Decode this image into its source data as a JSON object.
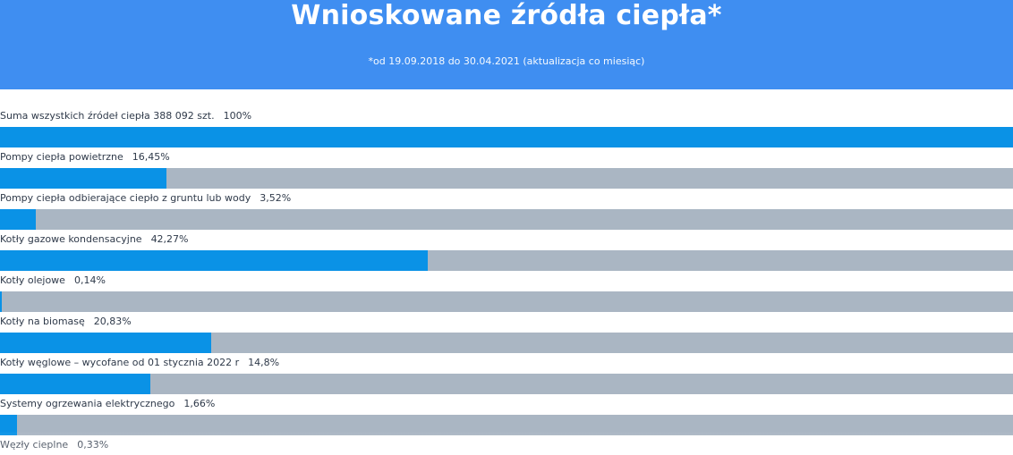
{
  "header": {
    "title": "Wnioskowane źródła ciepła*",
    "subtitle": "*od 19.09.2018 do 30.04.2021 (aktualizacja co miesiąc)"
  },
  "colors": {
    "header_bg": "#3f8ef1",
    "bar_fill": "#0a92e6",
    "bar_track": "#aab6c3",
    "label_text": "#2f3a4a"
  },
  "chart_data": {
    "type": "bar",
    "orientation": "horizontal",
    "unit": "%",
    "xlim": [
      0,
      100
    ],
    "grid": false,
    "rows": [
      {
        "label": "Suma wszystkich źródeł ciepła 388 092 szt.",
        "value_text": "100%",
        "value": 100
      },
      {
        "label": "Pompy ciepła powietrzne",
        "value_text": "16,45%",
        "value": 16.45
      },
      {
        "label": "Pompy ciepła odbierające ciepło z gruntu lub wody",
        "value_text": "3,52%",
        "value": 3.52
      },
      {
        "label": "Kotły gazowe kondensacyjne",
        "value_text": "42,27%",
        "value": 42.27
      },
      {
        "label": "Kotły olejowe",
        "value_text": "0,14%",
        "value": 0.14
      },
      {
        "label": "Kotły na biomasę",
        "value_text": "20,83%",
        "value": 20.83
      },
      {
        "label": "Kotły węglowe – wycofane od 01 stycznia 2022 r",
        "value_text": "14,8%",
        "value": 14.8
      },
      {
        "label": "Systemy ogrzewania elektrycznego",
        "value_text": "1,66%",
        "value": 1.66
      },
      {
        "label": "Węzły cieplne",
        "value_text": "0,33%",
        "value": 0.33
      }
    ]
  }
}
